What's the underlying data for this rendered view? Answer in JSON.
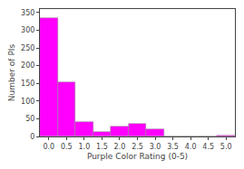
{
  "chart_data": {
    "type": "bar",
    "x": [
      0.0,
      0.5,
      1.0,
      1.5,
      2.0,
      2.5,
      3.0,
      3.5,
      4.0,
      4.5,
      5.0
    ],
    "values": [
      335,
      152,
      42,
      13,
      28,
      35,
      21,
      0,
      0,
      0,
      2
    ],
    "color": "#FF00FF",
    "xlabel": "Purple Color Rating (0-5)",
    "ylabel": "Number of PIs",
    "xlim": [
      -0.25,
      5.25
    ],
    "ylim": [
      0,
      360
    ],
    "xticks": [
      {
        "value": 0.0,
        "label": "0.0"
      },
      0.5,
      {
        "value": 1.0,
        "label": "1.0"
      },
      1.5,
      {
        "value": 2.0,
        "label": "2.0"
      },
      2.5,
      {
        "value": 3.0,
        "label": "3.0"
      },
      3.5,
      {
        "value": 4.0,
        "label": "4.0"
      },
      4.5,
      {
        "value": 5.0,
        "label": "5.0"
      }
    ],
    "yticks": [
      0,
      50,
      100,
      150,
      200,
      250,
      300,
      350
    ],
    "grid": false
  }
}
